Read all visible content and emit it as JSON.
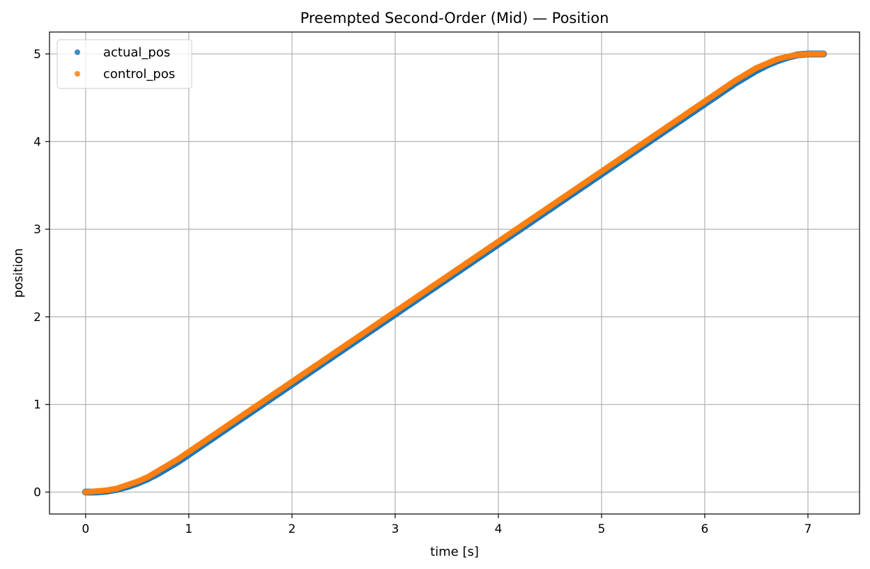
{
  "chart_data": {
    "type": "scatter",
    "title": "Preempted Second-Order (Mid) — Position",
    "xlabel": "time [s]",
    "ylabel": "position",
    "xlim": [
      -0.35,
      7.5
    ],
    "ylim": [
      -0.25,
      5.25
    ],
    "xticks": [
      0,
      1,
      2,
      3,
      4,
      5,
      6,
      7
    ],
    "yticks": [
      0,
      1,
      2,
      3,
      4,
      5
    ],
    "grid": true,
    "legend_position": "top-left",
    "series": [
      {
        "name": "actual_pos",
        "color": "#1f77b4",
        "x": [
          0,
          0.1,
          0.2,
          0.3,
          0.4,
          0.5,
          0.6,
          0.7,
          0.8,
          0.9,
          1.0,
          1.1,
          1.2,
          1.5,
          2.0,
          2.5,
          3.0,
          3.5,
          4.0,
          4.5,
          5.0,
          5.5,
          6.0,
          6.1,
          6.2,
          6.3,
          6.4,
          6.5,
          6.6,
          6.7,
          6.8,
          6.9,
          7.0,
          7.05,
          7.1,
          7.15
        ],
        "values": [
          0,
          0.0,
          0.01,
          0.03,
          0.06,
          0.1,
          0.15,
          0.21,
          0.28,
          0.35,
          0.43,
          0.51,
          0.59,
          0.83,
          1.23,
          1.63,
          2.03,
          2.43,
          2.83,
          3.23,
          3.63,
          4.03,
          4.43,
          4.51,
          4.59,
          4.67,
          4.74,
          4.81,
          4.87,
          4.92,
          4.96,
          4.99,
          5.0,
          5.0,
          5.0,
          5.0
        ]
      },
      {
        "name": "control_pos",
        "color": "#ff7f0e",
        "x": [
          0,
          0.1,
          0.2,
          0.3,
          0.4,
          0.5,
          0.6,
          0.7,
          0.8,
          0.9,
          1.0,
          1.1,
          1.2,
          1.5,
          2.0,
          2.5,
          3.0,
          3.5,
          4.0,
          4.5,
          5.0,
          5.5,
          6.0,
          6.1,
          6.2,
          6.3,
          6.4,
          6.5,
          6.6,
          6.7,
          6.8,
          6.9,
          7.0,
          7.05,
          7.1,
          7.15
        ],
        "values": [
          0,
          0.01,
          0.02,
          0.04,
          0.08,
          0.12,
          0.17,
          0.24,
          0.31,
          0.38,
          0.46,
          0.54,
          0.62,
          0.86,
          1.26,
          1.66,
          2.06,
          2.46,
          2.86,
          3.26,
          3.66,
          4.06,
          4.46,
          4.54,
          4.62,
          4.7,
          4.77,
          4.84,
          4.89,
          4.94,
          4.97,
          4.99,
          5.0,
          5.0,
          5.0,
          5.0
        ]
      }
    ]
  }
}
